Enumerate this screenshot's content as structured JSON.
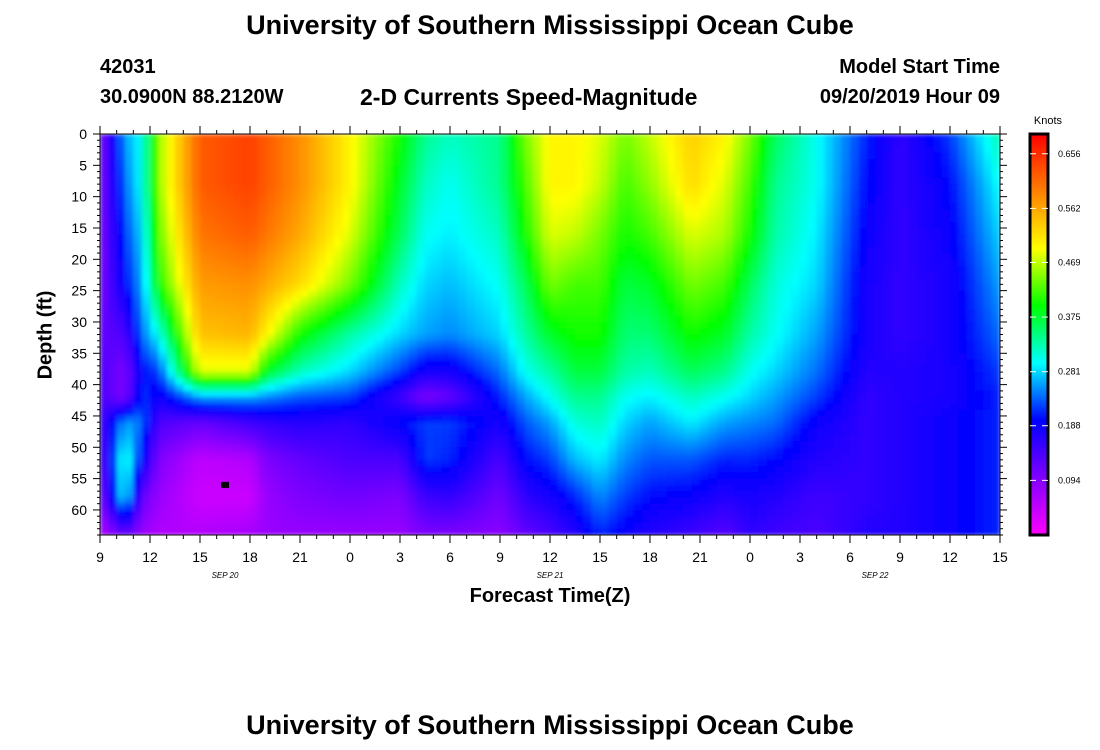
{
  "page": {
    "title_top": "University of Southern Mississippi Ocean Cube",
    "title_bottom": "University of Southern Mississippi Ocean Cube",
    "station_id": "42031",
    "station_coords": "30.0900N 88.2120W",
    "subtitle": "2-D Currents Speed-Magnitude",
    "model_start_label": "Model Start Time",
    "model_start_value": "09/20/2019 Hour 09"
  },
  "chart_data": {
    "type": "heatmap",
    "title": "2-D Currents Speed-Magnitude",
    "xlabel": "Forecast Time(Z)",
    "ylabel": "Depth (ft)",
    "x_unit": "hours since model start (09/20/2019 09Z)",
    "xlim": [
      0,
      54
    ],
    "ylim": [
      0,
      64
    ],
    "x_tick_values": [
      0,
      3,
      6,
      9,
      12,
      15,
      18,
      21,
      24,
      27,
      30,
      33,
      36,
      39,
      42,
      45,
      48,
      51,
      54
    ],
    "x_tick_labels": [
      "9",
      "12",
      "15",
      "18",
      "21",
      "0",
      "3",
      "6",
      "9",
      "12",
      "15",
      "18",
      "21",
      "0",
      "3",
      "6",
      "9",
      "12",
      "15"
    ],
    "date_labels": [
      {
        "text": "SEP 20",
        "x": 7.5
      },
      {
        "text": "SEP 21",
        "x": 27
      },
      {
        "text": "SEP 22",
        "x": 46.5
      }
    ],
    "y_tick_values": [
      0,
      5,
      10,
      15,
      20,
      25,
      30,
      35,
      40,
      45,
      50,
      55,
      60
    ],
    "y_tick_labels": [
      "0",
      "5",
      "10",
      "15",
      "20",
      "25",
      "30",
      "35",
      "40",
      "45",
      "50",
      "55",
      "60"
    ],
    "colorbar": {
      "label": "Knots",
      "min": 0,
      "max": 0.69,
      "tick_values": [
        0.656,
        0.562,
        0.469,
        0.375,
        0.281,
        0.188,
        0.094
      ],
      "tick_labels": [
        "0.656",
        "0.562",
        "0.469",
        "0.375",
        "0.281",
        "0.188",
        "0.094"
      ]
    },
    "colormap": [
      "#ff00ff",
      "#8000ff",
      "#0000ff",
      "#00ffff",
      "#00ff00",
      "#ffff00",
      "#ff8000",
      "#ff0000"
    ],
    "marker": {
      "x": 7.5,
      "y": 56
    },
    "depths": [
      0,
      8,
      16,
      24,
      32,
      38,
      42,
      46,
      52,
      58,
      64
    ],
    "hours": [
      0,
      1.5,
      2.5,
      3.5,
      6,
      9,
      10,
      12,
      15,
      18,
      19.5,
      21,
      24,
      25.5,
      27,
      28.5,
      30,
      31.5,
      33,
      35.5,
      37.5,
      39,
      40.5,
      43,
      46,
      48,
      51,
      54
    ],
    "speeds": [
      [
        0.1,
        0.1,
        0.1,
        0.1,
        0.12,
        0.14,
        0.14,
        0.14,
        0.12,
        0.1,
        0.06
      ],
      [
        0.26,
        0.24,
        0.22,
        0.2,
        0.14,
        0.1,
        0.1,
        0.26,
        0.32,
        0.3,
        0.12
      ],
      [
        0.3,
        0.3,
        0.28,
        0.26,
        0.24,
        0.2,
        0.22,
        0.24,
        0.2,
        0.12,
        0.08
      ],
      [
        0.45,
        0.45,
        0.43,
        0.4,
        0.3,
        0.22,
        0.18,
        0.14,
        0.1,
        0.08,
        0.06
      ],
      [
        0.62,
        0.62,
        0.6,
        0.57,
        0.54,
        0.48,
        0.26,
        0.12,
        0.05,
        0.04,
        0.06
      ],
      [
        0.64,
        0.64,
        0.62,
        0.58,
        0.55,
        0.48,
        0.26,
        0.15,
        0.06,
        0.04,
        0.07
      ],
      [
        0.62,
        0.62,
        0.6,
        0.56,
        0.5,
        0.38,
        0.25,
        0.16,
        0.1,
        0.08,
        0.08
      ],
      [
        0.58,
        0.58,
        0.56,
        0.52,
        0.4,
        0.32,
        0.23,
        0.17,
        0.12,
        0.1,
        0.08
      ],
      [
        0.5,
        0.5,
        0.48,
        0.44,
        0.33,
        0.28,
        0.22,
        0.16,
        0.14,
        0.11,
        0.08
      ],
      [
        0.4,
        0.38,
        0.36,
        0.32,
        0.28,
        0.22,
        0.15,
        0.2,
        0.14,
        0.1,
        0.08
      ],
      [
        0.34,
        0.32,
        0.3,
        0.28,
        0.26,
        0.18,
        0.1,
        0.22,
        0.22,
        0.15,
        0.1
      ],
      [
        0.32,
        0.3,
        0.29,
        0.27,
        0.25,
        0.18,
        0.12,
        0.22,
        0.21,
        0.16,
        0.1
      ],
      [
        0.34,
        0.34,
        0.32,
        0.3,
        0.28,
        0.24,
        0.21,
        0.18,
        0.14,
        0.11,
        0.09
      ],
      [
        0.44,
        0.42,
        0.4,
        0.36,
        0.33,
        0.3,
        0.26,
        0.23,
        0.2,
        0.16,
        0.12
      ],
      [
        0.5,
        0.5,
        0.48,
        0.44,
        0.38,
        0.33,
        0.3,
        0.26,
        0.22,
        0.18,
        0.14
      ],
      [
        0.5,
        0.5,
        0.47,
        0.42,
        0.4,
        0.37,
        0.34,
        0.31,
        0.27,
        0.21,
        0.17
      ],
      [
        0.48,
        0.47,
        0.44,
        0.42,
        0.4,
        0.37,
        0.34,
        0.32,
        0.29,
        0.25,
        0.21
      ],
      [
        0.44,
        0.42,
        0.4,
        0.37,
        0.35,
        0.33,
        0.3,
        0.28,
        0.25,
        0.22,
        0.19
      ],
      [
        0.47,
        0.45,
        0.42,
        0.38,
        0.35,
        0.32,
        0.29,
        0.26,
        0.23,
        0.2,
        0.17
      ],
      [
        0.53,
        0.52,
        0.48,
        0.44,
        0.4,
        0.36,
        0.32,
        0.29,
        0.23,
        0.19,
        0.15
      ],
      [
        0.5,
        0.48,
        0.46,
        0.42,
        0.38,
        0.34,
        0.3,
        0.26,
        0.21,
        0.17,
        0.13
      ],
      [
        0.44,
        0.42,
        0.4,
        0.36,
        0.33,
        0.3,
        0.28,
        0.25,
        0.21,
        0.18,
        0.16
      ],
      [
        0.36,
        0.34,
        0.33,
        0.31,
        0.3,
        0.28,
        0.26,
        0.24,
        0.2,
        0.17,
        0.15
      ],
      [
        0.3,
        0.3,
        0.29,
        0.28,
        0.26,
        0.24,
        0.22,
        0.19,
        0.17,
        0.15,
        0.14
      ],
      [
        0.21,
        0.2,
        0.19,
        0.18,
        0.18,
        0.17,
        0.16,
        0.16,
        0.16,
        0.16,
        0.17
      ],
      [
        0.16,
        0.16,
        0.16,
        0.16,
        0.16,
        0.17,
        0.17,
        0.17,
        0.17,
        0.17,
        0.17
      ],
      [
        0.22,
        0.2,
        0.19,
        0.18,
        0.18,
        0.18,
        0.18,
        0.19,
        0.19,
        0.19,
        0.19
      ],
      [
        0.33,
        0.3,
        0.28,
        0.26,
        0.24,
        0.22,
        0.21,
        0.21,
        0.21,
        0.21,
        0.21
      ]
    ]
  }
}
